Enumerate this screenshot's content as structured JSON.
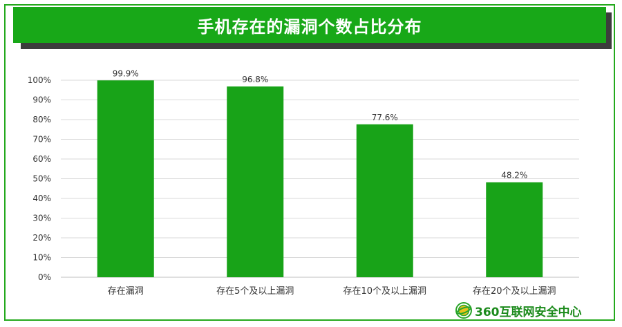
{
  "header": {
    "title": "手机存在的漏洞个数占比分布"
  },
  "brand": {
    "name": "360互联网安全中心"
  },
  "colors": {
    "bar": "#18a318",
    "accent": "#23a91c",
    "grid": "#d9d9d9",
    "text": "#333333"
  },
  "chart_data": {
    "type": "bar",
    "title": "手机存在的漏洞个数占比分布",
    "categories": [
      "存在漏洞",
      "存在5个及以上漏洞",
      "存在10个及以上漏洞",
      "存在20个及以上漏洞"
    ],
    "values": [
      99.9,
      96.8,
      77.6,
      48.2
    ],
    "value_labels": [
      "99.9%",
      "96.8%",
      "77.6%",
      "48.2%"
    ],
    "yticks": [
      "0%",
      "10%",
      "20%",
      "30%",
      "40%",
      "50%",
      "60%",
      "70%",
      "80%",
      "90%",
      "100%"
    ],
    "ylim": [
      0,
      100
    ],
    "xlabel": "",
    "ylabel": "",
    "grid": true,
    "legend": "none"
  }
}
